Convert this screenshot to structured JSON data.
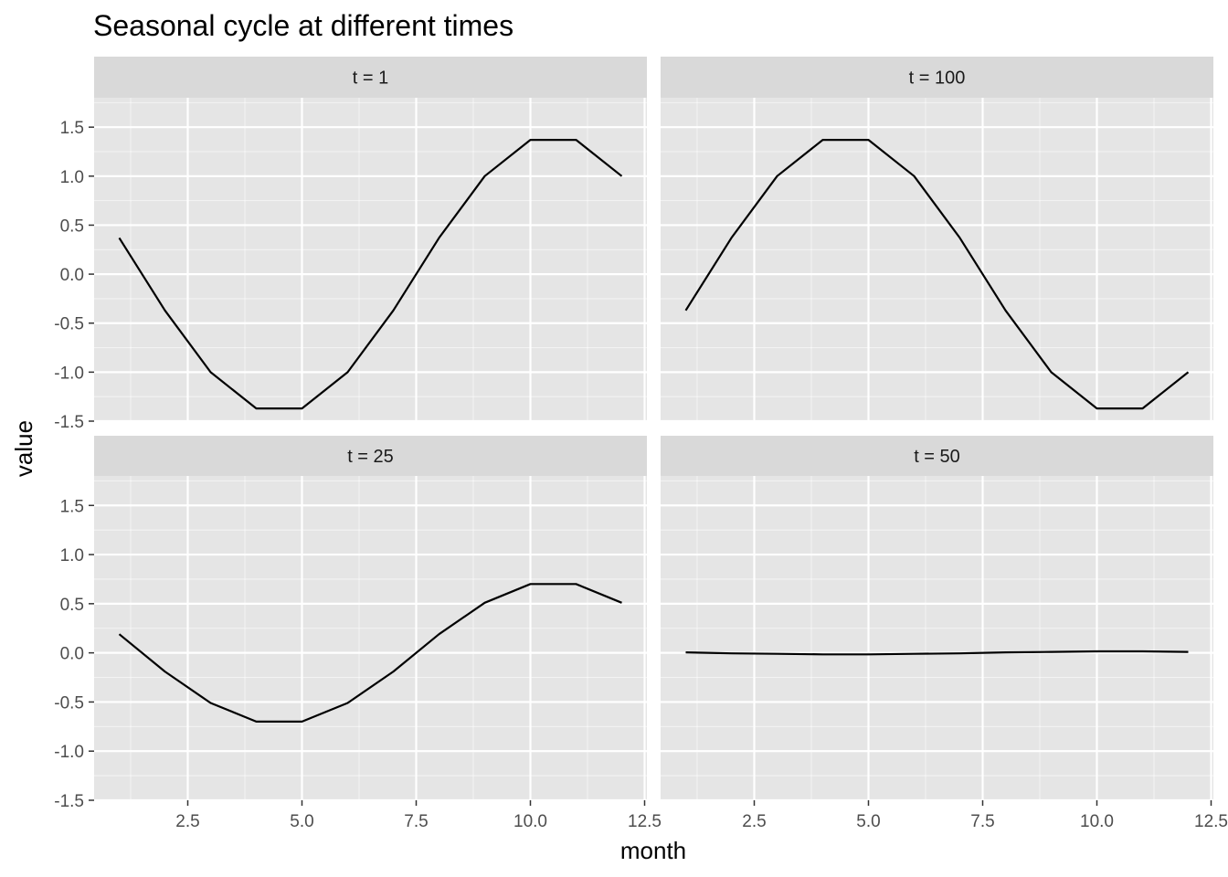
{
  "chart_data": {
    "type": "line",
    "title": "Seasonal cycle at different times",
    "xlabel": "month",
    "ylabel": "value",
    "xlim": [
      0.45,
      12.55
    ],
    "ylim": [
      -1.5,
      1.8
    ],
    "x_ticks": [
      2.5,
      5.0,
      7.5,
      10.0,
      12.5
    ],
    "x_tick_labels": [
      "2.5",
      "5.0",
      "7.5",
      "10.0",
      "12.5"
    ],
    "y_ticks": [
      -1.5,
      -1.0,
      -0.5,
      0.0,
      0.5,
      1.0,
      1.5
    ],
    "y_tick_labels": [
      "-1.5",
      "-1.0",
      "-0.5",
      "0.0",
      "0.5",
      "1.0",
      "1.5"
    ],
    "grid": true,
    "panels": [
      {
        "label": "t = 1",
        "x": [
          1,
          2,
          3,
          4,
          5,
          6,
          7,
          8,
          9,
          10,
          11,
          12
        ],
        "y": [
          0.37,
          -0.37,
          -1.0,
          -1.37,
          -1.37,
          -1.0,
          -0.37,
          0.37,
          1.0,
          1.37,
          1.37,
          1.0
        ]
      },
      {
        "label": "t = 100",
        "x": [
          1,
          2,
          3,
          4,
          5,
          6,
          7,
          8,
          9,
          10,
          11,
          12
        ],
        "y": [
          -0.37,
          0.37,
          1.0,
          1.37,
          1.37,
          1.0,
          0.37,
          -0.37,
          -1.0,
          -1.37,
          -1.37,
          -1.0
        ]
      },
      {
        "label": "t = 25",
        "x": [
          1,
          2,
          3,
          4,
          5,
          6,
          7,
          8,
          9,
          10,
          11,
          12
        ],
        "y": [
          0.19,
          -0.19,
          -0.51,
          -0.7,
          -0.7,
          -0.51,
          -0.19,
          0.19,
          0.51,
          0.7,
          0.7,
          0.51
        ]
      },
      {
        "label": "t = 50",
        "x": [
          1,
          2,
          3,
          4,
          5,
          6,
          7,
          8,
          9,
          10,
          11,
          12
        ],
        "y": [
          0.005,
          -0.005,
          -0.01,
          -0.015,
          -0.015,
          -0.01,
          -0.005,
          0.005,
          0.01,
          0.015,
          0.015,
          0.01
        ]
      }
    ]
  },
  "colors": {
    "panel_background": "#e5e5e5",
    "strip_background": "#d9d9d9",
    "grid_major": "#ffffff",
    "line": "#000000"
  }
}
